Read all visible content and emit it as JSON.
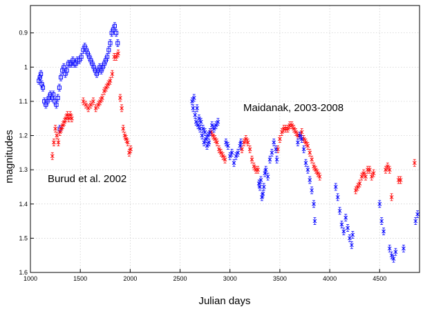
{
  "chart_data": {
    "type": "scatter",
    "title": "",
    "xlabel": "Julian days",
    "ylabel": "magnitudes",
    "xlim": [
      1000,
      4900
    ],
    "ylim": [
      1.6,
      0.82
    ],
    "y_inverted": true,
    "grid": true,
    "x_ticks": [
      1000,
      1500,
      2000,
      2500,
      3000,
      3500,
      4000,
      4500
    ],
    "y_ticks": [
      0.9,
      1,
      1.1,
      1.2,
      1.3,
      1.4,
      1.5,
      1.6
    ],
    "annotations": [
      "Maidanak, 2003-2008",
      "Burud et al. 2002"
    ],
    "series": [
      {
        "color": "#0000ff",
        "marker": "square-with-errorbar",
        "points": [
          [
            1085,
            1.04
          ],
          [
            1095,
            1.03
          ],
          [
            1105,
            1.02
          ],
          [
            1115,
            1.05
          ],
          [
            1125,
            1.06
          ],
          [
            1140,
            1.1
          ],
          [
            1155,
            1.11
          ],
          [
            1170,
            1.1
          ],
          [
            1185,
            1.09
          ],
          [
            1200,
            1.08
          ],
          [
            1215,
            1.09
          ],
          [
            1230,
            1.08
          ],
          [
            1245,
            1.1
          ],
          [
            1260,
            1.11
          ],
          [
            1275,
            1.09
          ],
          [
            1290,
            1.06
          ],
          [
            1305,
            1.03
          ],
          [
            1320,
            1.01
          ],
          [
            1335,
            1.0
          ],
          [
            1350,
            1.02
          ],
          [
            1365,
            1.01
          ],
          [
            1380,
            0.99
          ],
          [
            1395,
            0.99
          ],
          [
            1410,
            0.99
          ],
          [
            1425,
            0.98
          ],
          [
            1440,
            0.99
          ],
          [
            1455,
            0.99
          ],
          [
            1470,
            0.98
          ],
          [
            1490,
            0.98
          ],
          [
            1510,
            0.97
          ],
          [
            1530,
            0.95
          ],
          [
            1545,
            0.94
          ],
          [
            1560,
            0.95
          ],
          [
            1575,
            0.96
          ],
          [
            1590,
            0.97
          ],
          [
            1605,
            0.98
          ],
          [
            1620,
            0.99
          ],
          [
            1635,
            1.0
          ],
          [
            1650,
            1.01
          ],
          [
            1665,
            1.02
          ],
          [
            1680,
            1.01
          ],
          [
            1695,
            1.0
          ],
          [
            1710,
            1.01
          ],
          [
            1725,
            1.0
          ],
          [
            1740,
            0.99
          ],
          [
            1755,
            0.98
          ],
          [
            1770,
            0.97
          ],
          [
            1785,
            0.95
          ],
          [
            1800,
            0.93
          ],
          [
            1815,
            0.9
          ],
          [
            1830,
            0.89
          ],
          [
            1845,
            0.88
          ],
          [
            1860,
            0.9
          ],
          [
            1875,
            0.93
          ],
          [
            1295,
            1.18
          ]
        ]
      },
      {
        "color": "#ff0000",
        "marker": "cross-with-errorbar",
        "points": [
          [
            1220,
            1.26
          ],
          [
            1235,
            1.22
          ],
          [
            1250,
            1.18
          ],
          [
            1265,
            1.2
          ],
          [
            1280,
            1.22
          ],
          [
            1295,
            1.19
          ],
          [
            1310,
            1.18
          ],
          [
            1325,
            1.17
          ],
          [
            1340,
            1.16
          ],
          [
            1355,
            1.15
          ],
          [
            1370,
            1.14
          ],
          [
            1385,
            1.15
          ],
          [
            1400,
            1.14
          ],
          [
            1415,
            1.15
          ],
          [
            1530,
            1.1
          ],
          [
            1555,
            1.11
          ],
          [
            1580,
            1.12
          ],
          [
            1605,
            1.11
          ],
          [
            1630,
            1.1
          ],
          [
            1655,
            1.12
          ],
          [
            1680,
            1.11
          ],
          [
            1700,
            1.1
          ],
          [
            1720,
            1.09
          ],
          [
            1740,
            1.07
          ],
          [
            1760,
            1.06
          ],
          [
            1780,
            1.05
          ],
          [
            1800,
            1.04
          ],
          [
            1820,
            1.02
          ],
          [
            1840,
            0.97
          ],
          [
            1860,
            0.97
          ],
          [
            1880,
            0.96
          ],
          [
            1900,
            1.09
          ],
          [
            1915,
            1.12
          ],
          [
            1930,
            1.18
          ],
          [
            1945,
            1.2
          ],
          [
            1960,
            1.21
          ],
          [
            1975,
            1.22
          ],
          [
            1990,
            1.25
          ],
          [
            2005,
            1.24
          ],
          [
            2810,
            1.19
          ],
          [
            2830,
            1.2
          ],
          [
            2850,
            1.21
          ],
          [
            2870,
            1.22
          ],
          [
            2890,
            1.24
          ],
          [
            2910,
            1.25
          ],
          [
            2930,
            1.26
          ],
          [
            2950,
            1.27
          ],
          [
            3120,
            1.24
          ],
          [
            3140,
            1.22
          ],
          [
            3160,
            1.21
          ],
          [
            3180,
            1.22
          ],
          [
            3200,
            1.24
          ],
          [
            3220,
            1.27
          ],
          [
            3240,
            1.29
          ],
          [
            3260,
            1.3
          ],
          [
            3280,
            1.3
          ],
          [
            3480,
            1.24
          ],
          [
            3500,
            1.21
          ],
          [
            3520,
            1.19
          ],
          [
            3540,
            1.18
          ],
          [
            3560,
            1.18
          ],
          [
            3580,
            1.18
          ],
          [
            3600,
            1.17
          ],
          [
            3620,
            1.17
          ],
          [
            3640,
            1.18
          ],
          [
            3660,
            1.19
          ],
          [
            3680,
            1.2
          ],
          [
            3700,
            1.2
          ],
          [
            3720,
            1.19
          ],
          [
            3740,
            1.21
          ],
          [
            3760,
            1.22
          ],
          [
            3780,
            1.23
          ],
          [
            3800,
            1.25
          ],
          [
            3820,
            1.27
          ],
          [
            3840,
            1.29
          ],
          [
            3860,
            1.3
          ],
          [
            3880,
            1.31
          ],
          [
            3900,
            1.32
          ],
          [
            4260,
            1.36
          ],
          [
            4280,
            1.35
          ],
          [
            4300,
            1.34
          ],
          [
            4320,
            1.32
          ],
          [
            4340,
            1.31
          ],
          [
            4360,
            1.32
          ],
          [
            4380,
            1.3
          ],
          [
            4400,
            1.3
          ],
          [
            4420,
            1.32
          ],
          [
            4440,
            1.31
          ],
          [
            4560,
            1.3
          ],
          [
            4580,
            1.29
          ],
          [
            4600,
            1.3
          ],
          [
            4620,
            1.38
          ],
          [
            4690,
            1.33
          ],
          [
            4710,
            1.33
          ],
          [
            4850,
            1.28
          ]
        ]
      },
      {
        "color": "#0000ff",
        "marker": "cross-with-errorbar",
        "points": [
          [
            2620,
            1.1
          ],
          [
            2630,
            1.12
          ],
          [
            2640,
            1.09
          ],
          [
            2650,
            1.14
          ],
          [
            2660,
            1.16
          ],
          [
            2670,
            1.12
          ],
          [
            2680,
            1.17
          ],
          [
            2690,
            1.15
          ],
          [
            2700,
            1.18
          ],
          [
            2710,
            1.16
          ],
          [
            2720,
            1.2
          ],
          [
            2730,
            1.18
          ],
          [
            2740,
            1.22
          ],
          [
            2750,
            1.19
          ],
          [
            2760,
            1.21
          ],
          [
            2770,
            1.23
          ],
          [
            2780,
            1.2
          ],
          [
            2790,
            1.22
          ],
          [
            2800,
            1.19
          ],
          [
            2820,
            1.17
          ],
          [
            2840,
            1.18
          ],
          [
            2860,
            1.17
          ],
          [
            2880,
            1.16
          ],
          [
            2960,
            1.22
          ],
          [
            2980,
            1.23
          ],
          [
            3000,
            1.26
          ],
          [
            3020,
            1.25
          ],
          [
            3040,
            1.28
          ],
          [
            3060,
            1.26
          ],
          [
            3080,
            1.25
          ],
          [
            3100,
            1.23
          ],
          [
            3110,
            1.22
          ],
          [
            3290,
            1.34
          ],
          [
            3300,
            1.35
          ],
          [
            3310,
            1.33
          ],
          [
            3320,
            1.38
          ],
          [
            3330,
            1.37
          ],
          [
            3340,
            1.35
          ],
          [
            3350,
            1.31
          ],
          [
            3360,
            1.3
          ],
          [
            3380,
            1.32
          ],
          [
            3400,
            1.27
          ],
          [
            3420,
            1.25
          ],
          [
            3440,
            1.22
          ],
          [
            3460,
            1.24
          ],
          [
            3470,
            1.27
          ],
          [
            3680,
            1.22
          ],
          [
            3700,
            1.2
          ],
          [
            3720,
            1.21
          ],
          [
            3740,
            1.24
          ],
          [
            3760,
            1.28
          ],
          [
            3780,
            1.3
          ],
          [
            3800,
            1.33
          ],
          [
            3820,
            1.36
          ],
          [
            3840,
            1.4
          ],
          [
            3850,
            1.45
          ],
          [
            4060,
            1.35
          ],
          [
            4080,
            1.38
          ],
          [
            4100,
            1.42
          ],
          [
            4120,
            1.46
          ],
          [
            4140,
            1.48
          ],
          [
            4160,
            1.44
          ],
          [
            4180,
            1.47
          ],
          [
            4200,
            1.5
          ],
          [
            4220,
            1.52
          ],
          [
            4230,
            1.49
          ],
          [
            4500,
            1.4
          ],
          [
            4520,
            1.45
          ],
          [
            4540,
            1.48
          ],
          [
            4600,
            1.53
          ],
          [
            4620,
            1.55
          ],
          [
            4640,
            1.56
          ],
          [
            4660,
            1.54
          ],
          [
            4740,
            1.53
          ],
          [
            4860,
            1.45
          ],
          [
            4880,
            1.43
          ]
        ]
      }
    ]
  }
}
